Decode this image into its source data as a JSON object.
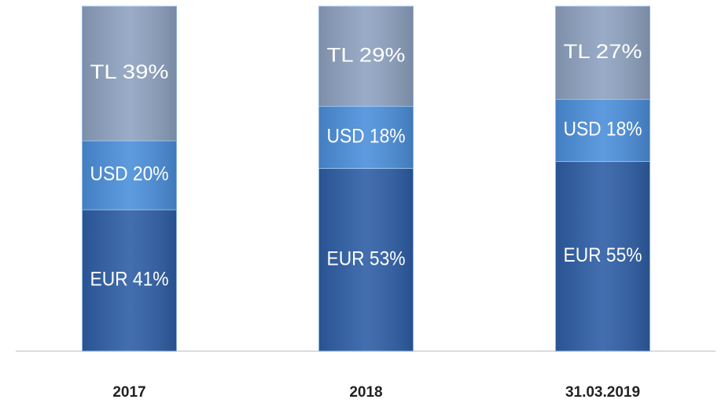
{
  "chart_data": {
    "type": "stacked_bar",
    "categories": [
      "2017",
      "2018",
      "31.03.2019"
    ],
    "series": [
      {
        "color": "#2e5ea6",
        "values": [
          41,
          53,
          55
        ],
        "value_labels": [
          "EUR 41%",
          "EUR 53%",
          "EUR 55%"
        ]
      },
      {
        "color": "#4b8fdb",
        "values": [
          20,
          18,
          18
        ],
        "value_labels": [
          "USD 20%",
          "USD 18%",
          "USD 18%"
        ]
      },
      {
        "color": "#8ea2c0",
        "values": [
          39,
          29,
          27
        ],
        "value_labels": [
          "TL 39%",
          "TL 29%",
          "TL 27%"
        ]
      }
    ],
    "ylim": [
      0,
      100
    ]
  }
}
